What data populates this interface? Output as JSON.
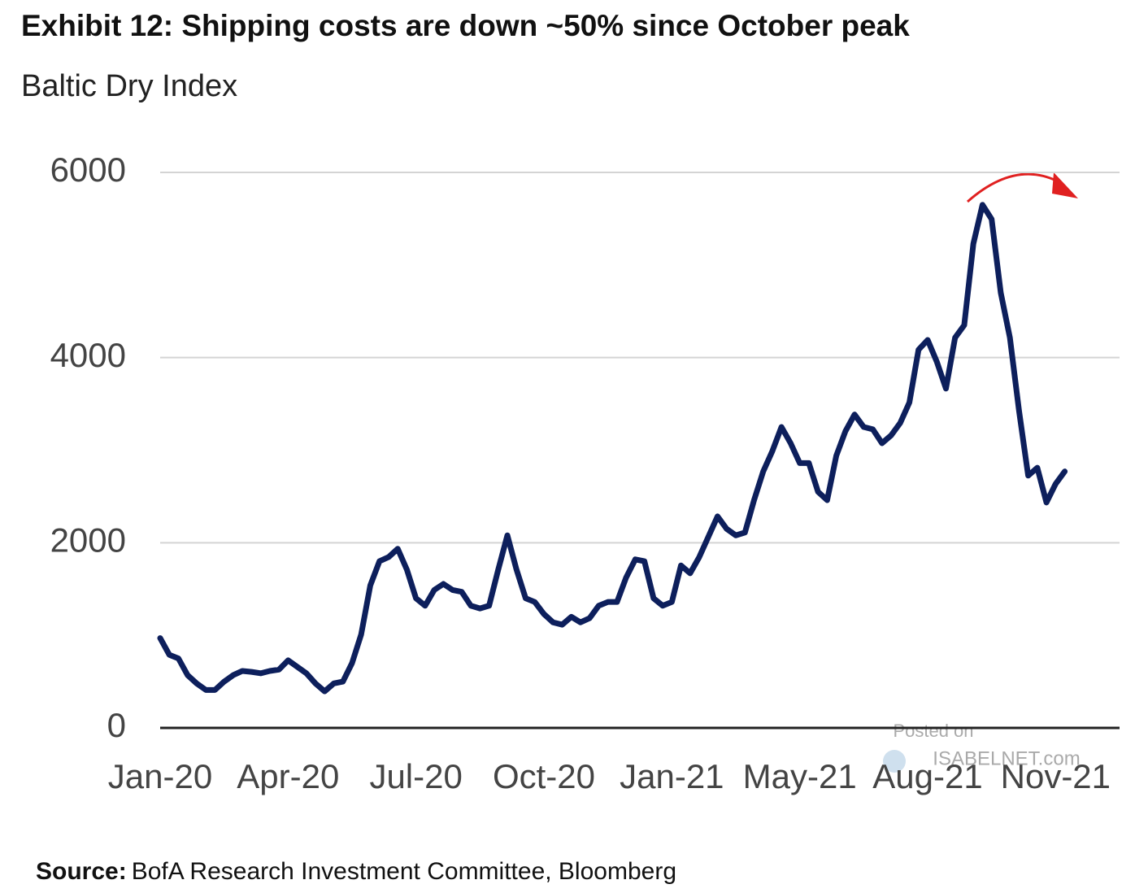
{
  "chart_data": {
    "type": "line",
    "title": "Exhibit 12: Shipping costs are down ~50% since October peak",
    "subtitle": "Baltic Dry Index",
    "source_label": "Source:",
    "source": "BofA Research Investment Committee, Bloomberg",
    "watermark": [
      "Posted on",
      "ISABELNET.com"
    ],
    "x": [
      0,
      1,
      2,
      3,
      4,
      5,
      6,
      7,
      8,
      9,
      10,
      11,
      12,
      13,
      14,
      15,
      16,
      17,
      18,
      19,
      20,
      21,
      22,
      23,
      24,
      25,
      26,
      27,
      28,
      29,
      30,
      31,
      32,
      33,
      34,
      35,
      36,
      37,
      38,
      39,
      40,
      41,
      42,
      43,
      44,
      45,
      46,
      47,
      48,
      49,
      50,
      51,
      52,
      53,
      54,
      55,
      56,
      57,
      58,
      59,
      60,
      61,
      62,
      63,
      64,
      65,
      66,
      67,
      68,
      69,
      70,
      71,
      72,
      73,
      74,
      75,
      76,
      77,
      78,
      79,
      80,
      81,
      82,
      83,
      84,
      85,
      86,
      87,
      88,
      89,
      90,
      91,
      92,
      93,
      94,
      95,
      96,
      97,
      98,
      99
    ],
    "series": [
      {
        "name": "Baltic Dry Index",
        "color": "#0d1f5c",
        "values": [
          970,
          790,
          750,
          570,
          480,
          410,
          410,
          500,
          570,
          615,
          605,
          590,
          615,
          630,
          730,
          660,
          590,
          480,
          395,
          480,
          500,
          700,
          1010,
          1540,
          1800,
          1845,
          1935,
          1710,
          1400,
          1320,
          1490,
          1555,
          1490,
          1470,
          1320,
          1290,
          1320,
          1710,
          2080,
          1710,
          1400,
          1360,
          1230,
          1140,
          1115,
          1200,
          1140,
          1185,
          1320,
          1360,
          1360,
          1625,
          1820,
          1800,
          1400,
          1320,
          1360,
          1755,
          1670,
          1845,
          2065,
          2285,
          2150,
          2080,
          2110,
          2460,
          2770,
          2990,
          3250,
          3075,
          2860,
          2860,
          2550,
          2460,
          2940,
          3205,
          3385,
          3250,
          3225,
          3075,
          3160,
          3295,
          3515,
          4085,
          4190,
          3955,
          3665,
          4215,
          4350,
          5230,
          5650,
          5495,
          4700,
          4215,
          3425,
          2725,
          2810,
          2435,
          2635,
          2770
        ]
      }
    ],
    "xlim": [
      0,
      105
    ],
    "xticks": [
      {
        "value": 0,
        "label": "Jan-20"
      },
      {
        "value": 14,
        "label": "Apr-20"
      },
      {
        "value": 28,
        "label": "Jul-20"
      },
      {
        "value": 42,
        "label": "Oct-20"
      },
      {
        "value": 56,
        "label": "Jan-21"
      },
      {
        "value": 70,
        "label": "May-21"
      },
      {
        "value": 84,
        "label": "Aug-21"
      },
      {
        "value": 98,
        "label": "Nov-21"
      }
    ],
    "ylim": [
      0,
      6000
    ],
    "yticks": [
      0,
      2000,
      4000,
      6000
    ],
    "grid": true
  }
}
